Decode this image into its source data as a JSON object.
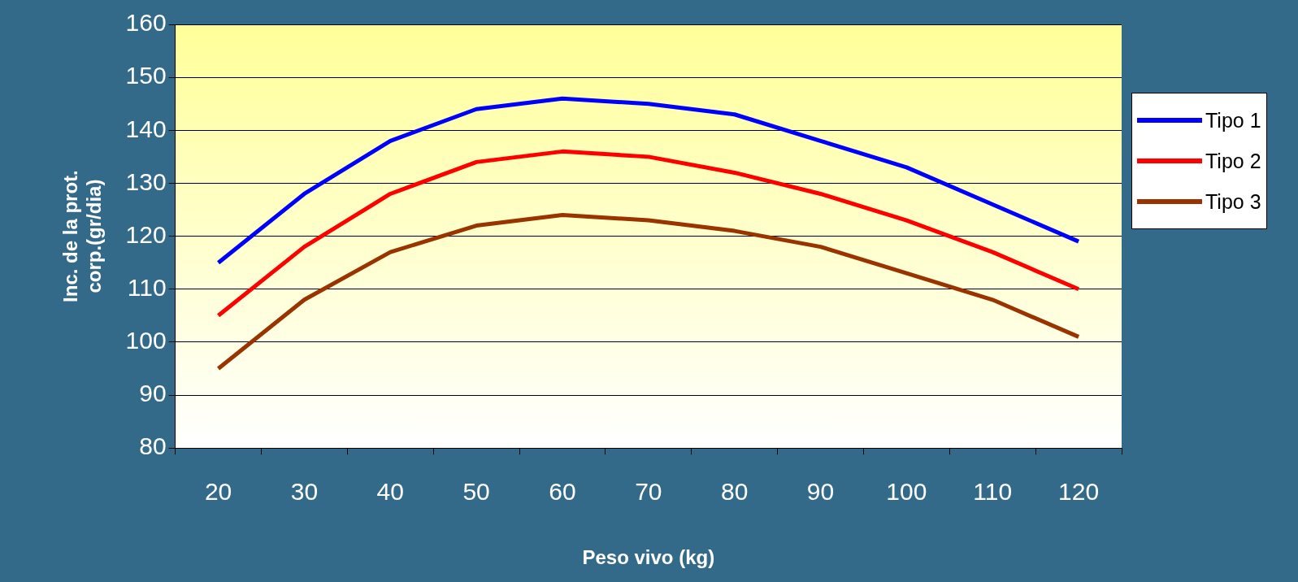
{
  "chart_data": {
    "type": "line",
    "xlabel": "Peso vivo (kg)",
    "ylabel": "Inc. de la prot.\ncorp.(gr/dia)",
    "categories": [
      "20",
      "30",
      "40",
      "50",
      "60",
      "70",
      "80",
      "90",
      "100",
      "110",
      "120"
    ],
    "series": [
      {
        "name": "Tipo 1",
        "color": "#0000ff",
        "values": [
          115,
          128,
          138,
          144,
          146,
          145,
          143,
          138,
          133,
          126,
          119
        ]
      },
      {
        "name": "Tipo 2",
        "color": "#ff0000",
        "values": [
          105,
          118,
          128,
          134,
          136,
          135,
          132,
          128,
          123,
          117,
          110
        ]
      },
      {
        "name": "Tipo 3",
        "color": "#993300",
        "values": [
          95,
          108,
          117,
          122,
          124,
          123,
          121,
          118,
          113,
          108,
          101
        ]
      }
    ],
    "ylim": [
      80,
      160
    ],
    "yticks": [
      80,
      90,
      100,
      110,
      120,
      130,
      140,
      150,
      160
    ],
    "grid": "y",
    "legend": "right",
    "marker": "none",
    "line_style": "solid"
  }
}
